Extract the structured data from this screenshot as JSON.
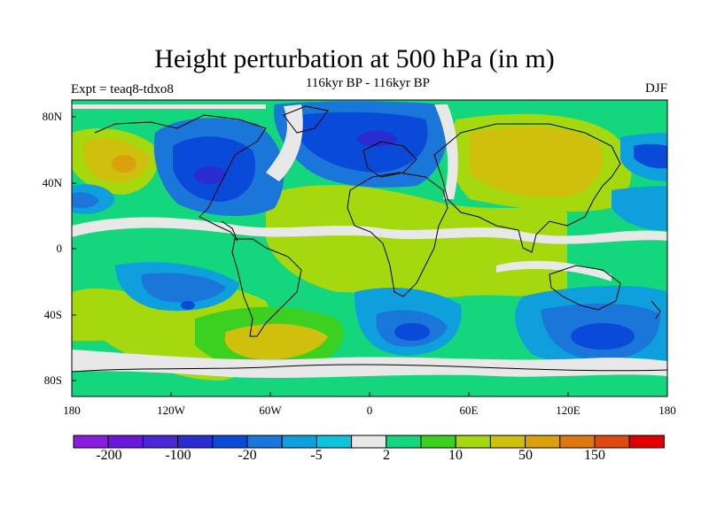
{
  "title": "Height perturbation at 500 hPa (in m)",
  "subtitle": "116kyr BP - 116kyr BP",
  "experiment": "Expt = teaq8-tdxo8",
  "season": "DJF",
  "lat_ticks": [
    "80N",
    "40N",
    "0",
    "40S",
    "80S"
  ],
  "lon_ticks": [
    "180",
    "120W",
    "60W",
    "0",
    "60E",
    "120E",
    "180"
  ],
  "colorbar": {
    "colors": [
      "#8a1ce0",
      "#6a16d8",
      "#4a26d6",
      "#2a2cd0",
      "#0a4ad8",
      "#1a76d8",
      "#0ea0dc",
      "#10c2dc",
      "#e8e8e8",
      "#14d67c",
      "#3cd020",
      "#a6d80e",
      "#d0c00e",
      "#dca00e",
      "#dc780e",
      "#dc4a10",
      "#e00000"
    ],
    "labels": [
      "-200",
      "-100",
      "-20",
      "-5",
      "2",
      "10",
      "50",
      "150"
    ]
  }
}
